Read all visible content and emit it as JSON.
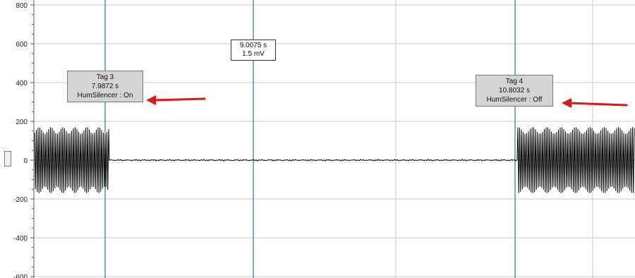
{
  "chart_data": {
    "type": "line",
    "xlabel": "",
    "ylabel": "",
    "xlim": [
      7.9,
      11.2
    ],
    "ylim": [
      -600,
      800
    ],
    "yticks": [
      800,
      600,
      400,
      200,
      0,
      -200,
      -400,
      -600
    ],
    "grid": true,
    "series": [
      {
        "segments": [
          {
            "x_start": 7.9,
            "x_end": 7.9872,
            "kind": "oscillation",
            "amplitude": 170
          },
          {
            "x_start": 7.9872,
            "x_end": 10.8032,
            "kind": "baseline",
            "amplitude": 3
          },
          {
            "x_start": 10.8032,
            "x_end": 11.2,
            "kind": "oscillation",
            "amplitude": 170
          }
        ]
      }
    ],
    "annotations": [
      {
        "id": "tag3",
        "x": 7.9872,
        "lines": [
          "Tag 3",
          "7.9872 s",
          "HumSilencer : On"
        ]
      },
      {
        "id": "tag4",
        "x": 10.8032,
        "lines": [
          "Tag 4",
          "10.8032 s",
          "HumSilencer : Off"
        ]
      },
      {
        "id": "cursor",
        "x": 9.0075,
        "lines": [
          "9.0075 s",
          "1.5 mV"
        ]
      }
    ],
    "colors": {
      "trace": "#000000",
      "marker_line": "#2a8080",
      "grid": "#c8c8c8",
      "arrow": "#e01818"
    }
  }
}
